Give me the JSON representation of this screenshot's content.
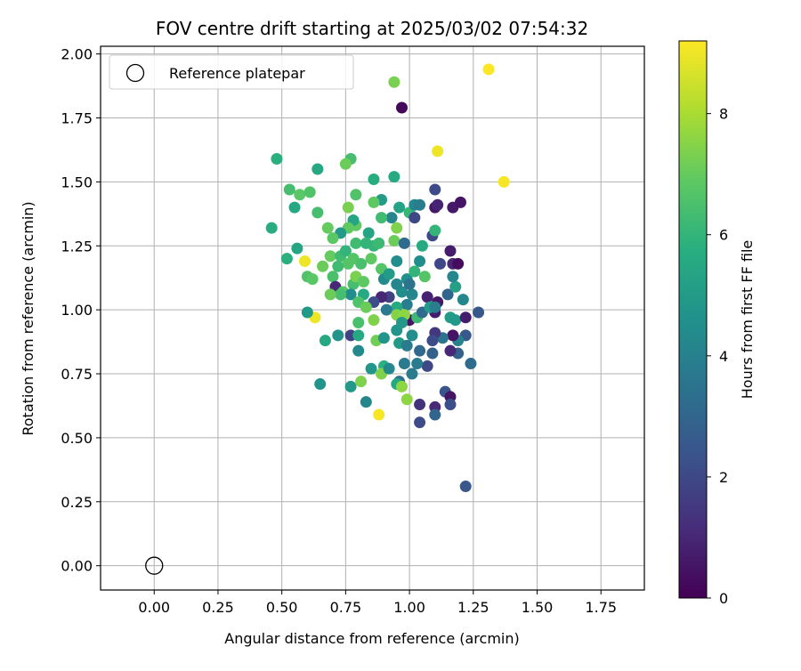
{
  "chart_data": {
    "type": "scatter",
    "title": "FOV centre drift starting at 2025/03/02 07:54:32",
    "xlabel": "Angular distance from reference (arcmin)",
    "ylabel": "Rotation from reference (arcmin)",
    "xlim": [
      -0.21,
      1.92
    ],
    "ylim": [
      -0.095,
      2.03
    ],
    "xticks": [
      "0.00",
      "0.25",
      "0.50",
      "0.75",
      "1.00",
      "1.25",
      "1.50",
      "1.75"
    ],
    "yticks": [
      "0.00",
      "0.25",
      "0.50",
      "0.75",
      "1.00",
      "1.25",
      "1.50",
      "1.75",
      "2.00"
    ],
    "grid": true,
    "legend": {
      "placement": "top-left",
      "label": "Reference platepar"
    },
    "reference_point": {
      "x": 0.0,
      "y": 0.0
    },
    "colorbar": {
      "label": "Hours from first FF file",
      "range": [
        0,
        9.2
      ],
      "ticks": [
        "0",
        "2",
        "4",
        "6",
        "8"
      ],
      "colormap": "viridis"
    },
    "points": [
      [
        0.94,
        1.89,
        7.3
      ],
      [
        0.97,
        1.79,
        0.2
      ],
      [
        1.31,
        1.94,
        9.2
      ],
      [
        1.11,
        1.62,
        9.0
      ],
      [
        1.37,
        1.5,
        9.1
      ],
      [
        0.48,
        1.59,
        5.8
      ],
      [
        0.64,
        1.55,
        5.5
      ],
      [
        0.77,
        1.59,
        6.4
      ],
      [
        0.75,
        1.57,
        7.1
      ],
      [
        0.94,
        1.52,
        5.6
      ],
      [
        0.86,
        1.51,
        5.7
      ],
      [
        0.53,
        1.47,
        6.4
      ],
      [
        0.57,
        1.45,
        6.8
      ],
      [
        0.61,
        1.46,
        6.6
      ],
      [
        0.79,
        1.45,
        6.6
      ],
      [
        0.55,
        1.4,
        5.5
      ],
      [
        0.64,
        1.38,
        6.4
      ],
      [
        0.76,
        1.4,
        7.3
      ],
      [
        0.79,
        1.33,
        6.9
      ],
      [
        0.78,
        1.35,
        5.4
      ],
      [
        0.89,
        1.43,
        5.0
      ],
      [
        0.86,
        1.42,
        6.9
      ],
      [
        0.96,
        1.4,
        5.3
      ],
      [
        1.0,
        1.38,
        6.1
      ],
      [
        1.02,
        1.41,
        4.2
      ],
      [
        1.04,
        1.41,
        3.9
      ],
      [
        1.1,
        1.47,
        2.1
      ],
      [
        1.1,
        1.4,
        0.6
      ],
      [
        1.11,
        1.41,
        0.9
      ],
      [
        1.17,
        1.4,
        0.6
      ],
      [
        1.2,
        1.42,
        0.5
      ],
      [
        1.02,
        1.36,
        2.0
      ],
      [
        0.93,
        1.36,
        4.2
      ],
      [
        0.89,
        1.36,
        6.3
      ],
      [
        0.84,
        1.3,
        5.4
      ],
      [
        0.76,
        1.32,
        6.9
      ],
      [
        0.73,
        1.3,
        5.0
      ],
      [
        0.68,
        1.32,
        7.0
      ],
      [
        0.7,
        1.28,
        6.8
      ],
      [
        0.46,
        1.32,
        5.7
      ],
      [
        0.56,
        1.24,
        5.4
      ],
      [
        0.52,
        1.2,
        5.8
      ],
      [
        0.59,
        1.19,
        9.0
      ],
      [
        0.6,
        1.13,
        6.6
      ],
      [
        0.62,
        1.12,
        6.8
      ],
      [
        0.66,
        1.17,
        7.1
      ],
      [
        0.69,
        1.21,
        7.0
      ],
      [
        0.73,
        1.21,
        6.3
      ],
      [
        0.75,
        1.23,
        6.0
      ],
      [
        0.78,
        1.2,
        6.7
      ],
      [
        0.79,
        1.26,
        6.3
      ],
      [
        0.83,
        1.26,
        6.0
      ],
      [
        0.86,
        1.25,
        6.0
      ],
      [
        0.88,
        1.26,
        6.2
      ],
      [
        0.94,
        1.27,
        7.1
      ],
      [
        0.95,
        1.32,
        7.4
      ],
      [
        0.98,
        1.26,
        3.2
      ],
      [
        1.05,
        1.25,
        5.6
      ],
      [
        1.09,
        1.29,
        2.0
      ],
      [
        1.1,
        1.31,
        6.0
      ],
      [
        1.16,
        1.23,
        0.7
      ],
      [
        1.12,
        1.18,
        2.0
      ],
      [
        1.04,
        1.19,
        4.5
      ],
      [
        0.95,
        1.19,
        4.5
      ],
      [
        0.89,
        1.16,
        6.7
      ],
      [
        0.85,
        1.2,
        6.9
      ],
      [
        0.81,
        1.18,
        6.5
      ],
      [
        0.76,
        1.18,
        6.7
      ],
      [
        0.72,
        1.17,
        6.3
      ],
      [
        0.7,
        1.13,
        6.5
      ],
      [
        0.71,
        1.09,
        1.0
      ],
      [
        0.74,
        1.07,
        6.8
      ],
      [
        0.78,
        1.1,
        6.4
      ],
      [
        0.79,
        1.13,
        7.3
      ],
      [
        0.82,
        1.11,
        6.9
      ],
      [
        0.9,
        1.12,
        4.4
      ],
      [
        0.92,
        1.14,
        5.0
      ],
      [
        0.99,
        1.12,
        4.6
      ],
      [
        1.02,
        1.15,
        6.0
      ],
      [
        1.06,
        1.13,
        6.7
      ],
      [
        1.07,
        1.05,
        0.9
      ],
      [
        1.11,
        1.03,
        0.6
      ],
      [
        1.15,
        1.06,
        3.0
      ],
      [
        1.17,
        1.18,
        1.0
      ],
      [
        1.19,
        1.18,
        0.3
      ],
      [
        1.18,
        1.09,
        5.2
      ],
      [
        1.17,
        1.13,
        4.2
      ],
      [
        1.21,
        1.04,
        4.2
      ],
      [
        1.16,
        0.97,
        5.0
      ],
      [
        1.18,
        0.96,
        4.9
      ],
      [
        1.22,
        0.97,
        0.7
      ],
      [
        1.27,
        0.99,
        2.5
      ],
      [
        1.22,
        0.9,
        2.5
      ],
      [
        1.19,
        0.88,
        4.0
      ],
      [
        1.17,
        0.9,
        0.5
      ],
      [
        1.19,
        0.83,
        2.8
      ],
      [
        1.24,
        0.79,
        3.2
      ],
      [
        1.16,
        0.84,
        1.0
      ],
      [
        1.13,
        0.89,
        3.5
      ],
      [
        1.1,
        0.91,
        1.5
      ],
      [
        1.09,
        0.88,
        2.1
      ],
      [
        1.09,
        0.83,
        2.8
      ],
      [
        1.07,
        0.78,
        2.0
      ],
      [
        1.03,
        0.79,
        3.8
      ],
      [
        1.01,
        0.9,
        4.5
      ],
      [
        1.0,
        0.96,
        0.5
      ],
      [
        1.03,
        0.97,
        6.2
      ],
      [
        1.05,
        0.99,
        3.2
      ],
      [
        1.1,
        0.99,
        0.7
      ],
      [
        1.08,
        1.01,
        5.0
      ],
      [
        1.1,
        1.01,
        3.9
      ],
      [
        0.99,
        1.02,
        3.9
      ],
      [
        0.95,
        1.01,
        5.6
      ],
      [
        0.92,
        1.05,
        1.8
      ],
      [
        0.97,
        1.07,
        4.5
      ],
      [
        1.01,
        1.06,
        4.2
      ],
      [
        1.0,
        1.1,
        3.5
      ],
      [
        0.95,
        1.1,
        4.2
      ],
      [
        0.89,
        1.05,
        1.0
      ],
      [
        0.86,
        1.03,
        2.2
      ],
      [
        0.82,
        1.06,
        5.6
      ],
      [
        0.77,
        1.06,
        4.4
      ],
      [
        0.73,
        1.06,
        6.4
      ],
      [
        0.69,
        1.06,
        7.1
      ],
      [
        0.8,
        1.03,
        6.6
      ],
      [
        0.83,
        1.01,
        7.1
      ],
      [
        0.86,
        0.96,
        7.4
      ],
      [
        0.91,
        1.0,
        3.7
      ],
      [
        0.95,
        0.98,
        7.5
      ],
      [
        0.98,
        0.98,
        7.6
      ],
      [
        0.87,
        0.88,
        7.2
      ],
      [
        0.9,
        0.89,
        4.7
      ],
      [
        0.95,
        0.92,
        4.7
      ],
      [
        0.97,
        0.95,
        4.9
      ],
      [
        0.96,
        0.87,
        4.9
      ],
      [
        0.99,
        0.86,
        3.8
      ],
      [
        1.04,
        0.84,
        3.1
      ],
      [
        0.98,
        0.79,
        3.8
      ],
      [
        0.9,
        0.78,
        5.8
      ],
      [
        0.85,
        0.77,
        4.8
      ],
      [
        0.77,
        0.9,
        1.8
      ],
      [
        0.72,
        0.9,
        4.7
      ],
      [
        0.8,
        0.84,
        4.3
      ],
      [
        0.8,
        0.9,
        5.5
      ],
      [
        0.8,
        0.95,
        6.5
      ],
      [
        0.67,
        0.88,
        5.5
      ],
      [
        0.63,
        0.97,
        9.0
      ],
      [
        0.6,
        0.99,
        4.9
      ],
      [
        0.65,
        0.71,
        4.7
      ],
      [
        0.77,
        0.7,
        4.9
      ],
      [
        0.81,
        0.72,
        7.4
      ],
      [
        0.83,
        0.64,
        4.2
      ],
      [
        0.88,
        0.59,
        9.1
      ],
      [
        0.89,
        0.75,
        7.4
      ],
      [
        0.92,
        0.77,
        4.3
      ],
      [
        0.96,
        0.72,
        3.4
      ],
      [
        0.95,
        0.71,
        5.5
      ],
      [
        0.97,
        0.7,
        7.6
      ],
      [
        0.99,
        0.65,
        7.6
      ],
      [
        1.01,
        0.75,
        3.8
      ],
      [
        1.04,
        0.63,
        1.3
      ],
      [
        1.04,
        0.56,
        2.1
      ],
      [
        1.1,
        0.62,
        1.1
      ],
      [
        1.1,
        0.59,
        3.0
      ],
      [
        1.14,
        0.68,
        2.4
      ],
      [
        1.16,
        0.66,
        0.5
      ],
      [
        1.16,
        0.63,
        2.2
      ],
      [
        1.22,
        0.31,
        2.5
      ]
    ]
  }
}
